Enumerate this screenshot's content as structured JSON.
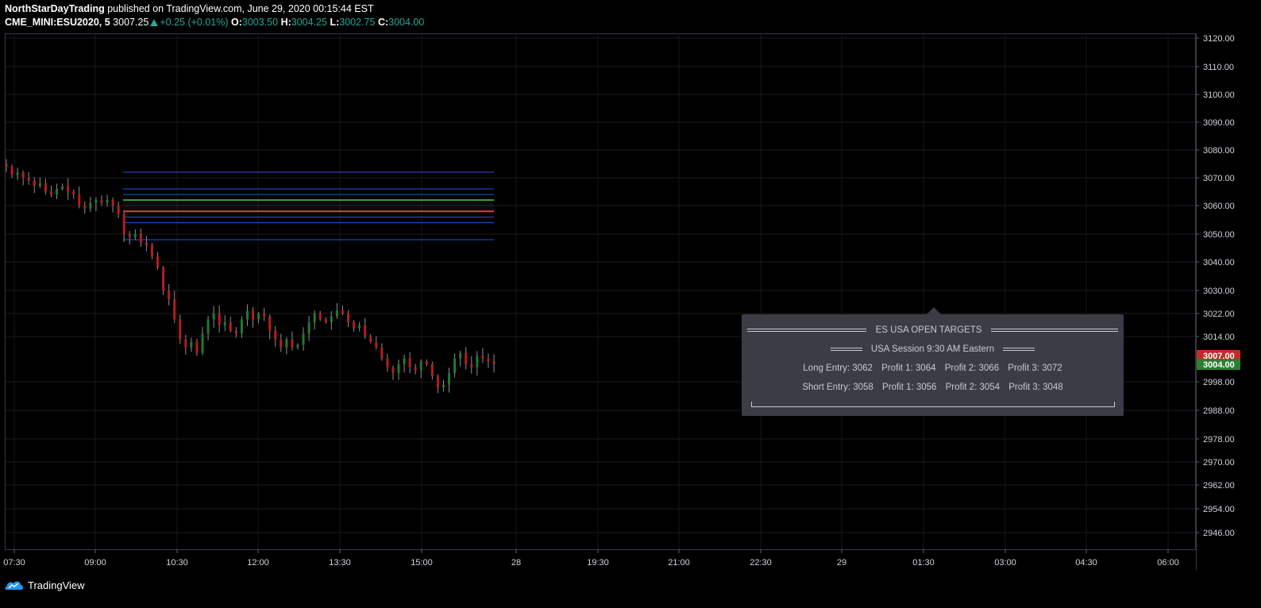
{
  "header": {
    "author": "NorthStarDayTrading",
    "published": "published on TradingView.com, June 29, 2020 00:15:44 EST",
    "symbol": "CME_MINI:ESU2020, 5",
    "last": "3007.25",
    "change": "+0.25 (+0.01%)",
    "o_label": "O:",
    "o_value": "3003.50",
    "h_label": "H:",
    "h_value": "3004.25",
    "l_label": "L:",
    "l_value": "3002.75",
    "c_label": "C:",
    "c_value": "3004.00"
  },
  "footer": {
    "brand": "TradingView"
  },
  "info_panel": {
    "title": "ES USA OPEN TARGETS",
    "session": "USA Session 9:30 AM Eastern",
    "long": [
      "Long Entry: 3062",
      "Profit 1: 3064",
      "Profit 2: 3066",
      "Profit 3: 3072"
    ],
    "short": [
      "Short Entry: 3058",
      "Profit 1: 3056",
      "Profit 2: 3054",
      "Profit 3: 3048"
    ]
  },
  "colors": {
    "up": "#26a69a",
    "candle_up": "#1f7a2e",
    "candle_down": "#b71c1c",
    "target_line": "#2962ff",
    "long_line": "#2e9b34",
    "short_line": "#e53935",
    "label_red": "#c62828",
    "label_green": "#2e7d32"
  },
  "chart_data": {
    "type": "candlestick",
    "grid": true,
    "y_ticks": [
      "3120.00",
      "3110.00",
      "3100.00",
      "3090.00",
      "3080.00",
      "3070.00",
      "3060.00",
      "3050.00",
      "3040.00",
      "3030.00",
      "3022.00",
      "3014.00",
      "3007.00",
      "3004.00",
      "2998.00",
      "2988.00",
      "2978.00",
      "2970.00",
      "2962.00",
      "2954.00",
      "2946.00"
    ],
    "y_tick_values": [
      3120,
      3110,
      3100,
      3090,
      3080,
      3070,
      3060,
      3050,
      3040,
      3030,
      3022,
      3014,
      2998,
      2988,
      2978,
      2970,
      2962,
      2954,
      2946
    ],
    "x_ticks": [
      "07:30",
      "09:00",
      "10:30",
      "12:00",
      "13:30",
      "15:00",
      "28",
      "19:30",
      "21:00",
      "22:30",
      "29",
      "01:30",
      "03:00",
      "04:30",
      "06:00"
    ],
    "price_labels": [
      {
        "text": "3007.00",
        "value": 3007,
        "color": "red"
      },
      {
        "text": "3004.00",
        "value": 3004,
        "color": "green"
      }
    ],
    "levels": [
      {
        "value": 3072,
        "kind": "target"
      },
      {
        "value": 3066,
        "kind": "target"
      },
      {
        "value": 3064,
        "kind": "target"
      },
      {
        "value": 3062,
        "kind": "long_entry"
      },
      {
        "value": 3058,
        "kind": "short_entry"
      },
      {
        "value": 3056,
        "kind": "target"
      },
      {
        "value": 3054,
        "kind": "target"
      },
      {
        "value": 3048,
        "kind": "target"
      }
    ],
    "close_path": [
      3074,
      3071,
      3072,
      3070,
      3069,
      3067,
      3068,
      3065,
      3064,
      3066,
      3067,
      3065,
      3064,
      3060,
      3059,
      3061,
      3062,
      3061,
      3062,
      3060,
      3057,
      3050,
      3049,
      3050,
      3047,
      3046,
      3042,
      3038,
      3030,
      3027,
      3020,
      3013,
      3010,
      3012,
      3008,
      3015,
      3020,
      3022,
      3018,
      3019,
      3016,
      3015,
      3020,
      3023,
      3020,
      3022,
      3021,
      3016,
      3013,
      3010,
      3013,
      3010,
      3011,
      3015,
      3019,
      3022,
      3020,
      3019,
      3021,
      3023,
      3022,
      3019,
      3017,
      3018,
      3014,
      3012,
      3010,
      3006,
      3003,
      3001,
      3004,
      3006,
      3003,
      3002,
      3005,
      3004,
      3000,
      2996,
      2997,
      3001,
      3006,
      3008,
      3004,
      3003,
      3007,
      3006,
      3005,
      3004
    ]
  }
}
